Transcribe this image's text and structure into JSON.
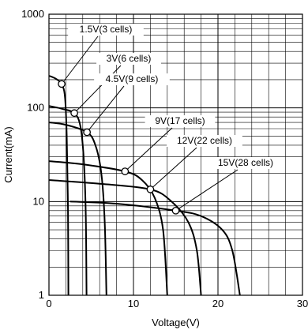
{
  "chart_data": {
    "type": "line",
    "xlabel": "Voltage(V)",
    "ylabel": "Current(mA)",
    "xlim": [
      0,
      30
    ],
    "ylim": [
      1,
      1000
    ],
    "yscale": "log",
    "grid": true,
    "x_ticks": [
      0,
      10,
      20,
      30
    ],
    "x_tick_labels": [
      "0",
      "10",
      "20",
      "30"
    ],
    "y_ticks": [
      1,
      10,
      100,
      1000
    ],
    "y_tick_labels": [
      "1",
      "10",
      "100",
      "1000"
    ],
    "series": [
      {
        "name": "1.5V(3 cells)",
        "operating_point": [
          1.5,
          180
        ],
        "points": [
          [
            0,
            220
          ],
          [
            0.8,
            205
          ],
          [
            1.5,
            180
          ],
          [
            1.9,
            130
          ],
          [
            2.1,
            50
          ],
          [
            2.25,
            8
          ],
          [
            2.3,
            1
          ]
        ]
      },
      {
        "name": "3V(6 cells)",
        "operating_point": [
          3,
          88
        ],
        "points": [
          [
            0,
            105
          ],
          [
            1.5,
            98
          ],
          [
            3,
            88
          ],
          [
            3.7,
            65
          ],
          [
            4.1,
            30
          ],
          [
            4.35,
            8
          ],
          [
            4.45,
            1
          ]
        ]
      },
      {
        "name": "4.5V(9 cells)",
        "operating_point": [
          4.5,
          55
        ],
        "points": [
          [
            0,
            70
          ],
          [
            2,
            66
          ],
          [
            4.5,
            55
          ],
          [
            5.5,
            40
          ],
          [
            6.2,
            20
          ],
          [
            6.6,
            6
          ],
          [
            6.8,
            1
          ]
        ]
      },
      {
        "name": "9V(17 cells)",
        "operating_point": [
          9,
          21
        ],
        "points": [
          [
            0,
            27
          ],
          [
            4,
            25
          ],
          [
            9,
            21
          ],
          [
            11,
            17
          ],
          [
            12.5,
            11
          ],
          [
            13.5,
            5
          ],
          [
            14,
            1
          ]
        ]
      },
      {
        "name": "12V(22 cells)",
        "operating_point": [
          12,
          13.5
        ],
        "points": [
          [
            0,
            17
          ],
          [
            6,
            15.5
          ],
          [
            12,
            13.5
          ],
          [
            14.5,
            10
          ],
          [
            16.5,
            6
          ],
          [
            17.5,
            3
          ],
          [
            18,
            1
          ]
        ]
      },
      {
        "name": "15V(28 cells)",
        "operating_point": [
          15,
          8
        ],
        "points": [
          [
            2.5,
            10
          ],
          [
            8,
            9.5
          ],
          [
            15,
            8
          ],
          [
            18,
            7
          ],
          [
            20.5,
            5
          ],
          [
            21.7,
            3
          ],
          [
            22.6,
            1
          ]
        ]
      }
    ],
    "annotations": [
      {
        "text": "1.5V(3 cells)",
        "series": 0
      },
      {
        "text": "3V(6 cells)",
        "series": 1
      },
      {
        "text": "4.5V(9 cells)",
        "series": 2
      },
      {
        "text": "9V(17 cells)",
        "series": 3
      },
      {
        "text": "12V(22 cells)",
        "series": 4
      },
      {
        "text": "15V(28 cells)",
        "series": 5
      }
    ]
  }
}
